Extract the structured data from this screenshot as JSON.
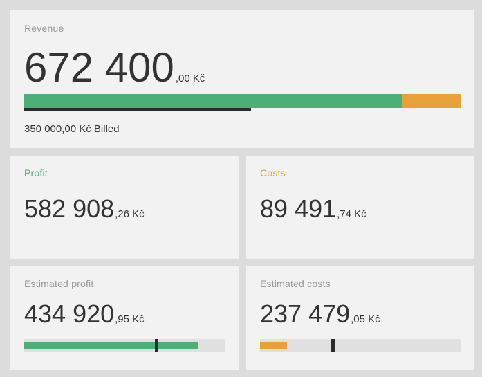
{
  "revenue": {
    "label": "Revenue",
    "amount_int": "672 400",
    "amount_dec": ",00 Kč",
    "billed_text": "350 000,00 Kč Billed",
    "profit_share": 0.867,
    "billed_share": 0.52
  },
  "profit": {
    "label": "Profit",
    "amount_int": "582 908",
    "amount_dec": ",26 Kč"
  },
  "costs": {
    "label": "Costs",
    "amount_int": "89 491",
    "amount_dec": ",74 Kč"
  },
  "estimated_profit": {
    "label": "Estimated profit",
    "amount_int": "434 920",
    "amount_dec": ",95 Kč",
    "fill_share": 0.867,
    "marker_share": 0.655
  },
  "estimated_costs": {
    "label": "Estimated costs",
    "amount_int": "237 479",
    "amount_dec": ",05 Kč",
    "fill_share": 0.133,
    "marker_share": 0.362
  },
  "colors": {
    "profit": "#4caf77",
    "costs": "#e8a03a",
    "marker": "#2b2b2b",
    "track": "#e0e0e0"
  }
}
